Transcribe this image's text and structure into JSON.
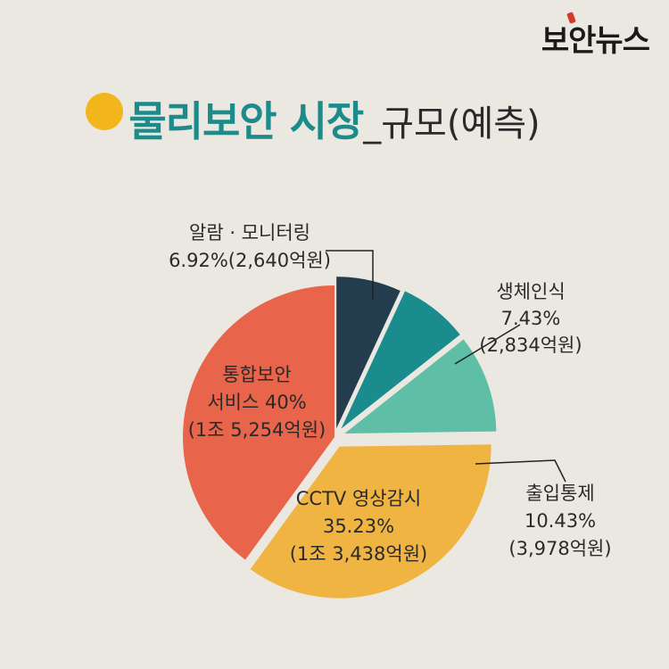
{
  "brand": {
    "logo": "보안뉴스"
  },
  "header": {
    "title": "물리보안 시장",
    "subtitle": "_규모(예측)"
  },
  "colors": {
    "background": "#ebe8e1",
    "title": "#1d8b8a",
    "accent_dot": "#f2b51b"
  },
  "chart_data": {
    "type": "pie",
    "title": "물리보안 시장_규모(예측)",
    "slices": [
      {
        "name": "알람 · 모니터링",
        "percent": 6.92,
        "amount": "2,640억원",
        "color": "#233d4f",
        "label_lines": [
          "알람 · 모니터링",
          "6.92%(2,640억원)"
        ]
      },
      {
        "name": "생체인식",
        "percent": 7.43,
        "amount": "2,834억원",
        "color": "#1a8c8e",
        "label_lines": [
          "생체인식",
          "7.43%",
          "(2,834억원)"
        ]
      },
      {
        "name": "출입통제",
        "percent": 10.43,
        "amount": "3,978억원",
        "color": "#5ebfa6",
        "label_lines": [
          "출입통제",
          "10.43%",
          "(3,978억원)"
        ]
      },
      {
        "name": "CCTV 영상감시",
        "percent": 35.23,
        "amount": "1조 3,438억원",
        "color": "#f0b443",
        "label_lines": [
          "CCTV 영상감시",
          "35.23%",
          "(1조 3,438억원)"
        ]
      },
      {
        "name": "통합보안 서비스",
        "percent": 40,
        "amount": "1조 5,254억원",
        "color": "#e8644b",
        "label_lines": [
          "통합보안",
          "서비스 40%",
          "(1조 5,254억원)"
        ]
      }
    ]
  }
}
